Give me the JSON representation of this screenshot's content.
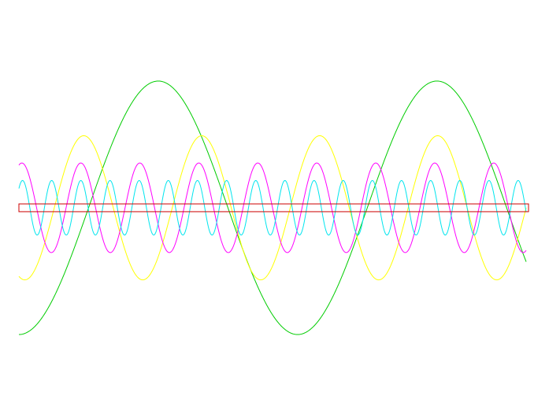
{
  "chart_data": {
    "type": "line",
    "title": "",
    "xlabel": "",
    "ylabel": "",
    "grid": false,
    "legend": "none",
    "xlim": [
      0,
      1
    ],
    "ylim": [
      -1,
      1
    ],
    "series": [
      {
        "color": "#00cc00",
        "amplitude": 0.976,
        "cycles": 1.82,
        "phase_deg": -90,
        "offset": 0.0
      },
      {
        "color": "#ffff00",
        "amplitude": 0.555,
        "cycles": 4.3,
        "phase_deg": -108,
        "offset": 0.0
      },
      {
        "color": "#ff00ff",
        "amplitude": 0.345,
        "cycles": 8.6,
        "phase_deg": 72,
        "offset": 0.0
      },
      {
        "color": "#00e5ee",
        "amplitude": 0.21,
        "cycles": 17.4,
        "phase_deg": 45,
        "offset": 0.0
      }
    ],
    "band": {
      "color": "#cc0000",
      "y_min": -0.03,
      "y_max": 0.03
    }
  }
}
